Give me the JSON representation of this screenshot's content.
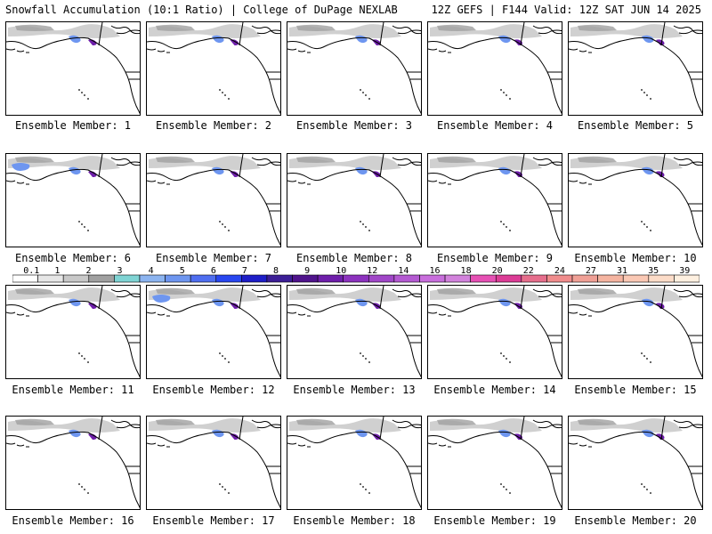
{
  "header": {
    "title": "Snowfall Accumulation (10:1 Ratio) | College of DuPage NEXLAB",
    "run_info": "12Z GEFS | F144 Valid: 12Z SAT JUN 14 2025"
  },
  "members": [
    {
      "label": "Ensemble Member: 1"
    },
    {
      "label": "Ensemble Member: 2"
    },
    {
      "label": "Ensemble Member: 3"
    },
    {
      "label": "Ensemble Member: 4"
    },
    {
      "label": "Ensemble Member: 5"
    },
    {
      "label": "Ensemble Member: 6"
    },
    {
      "label": "Ensemble Member: 7"
    },
    {
      "label": "Ensemble Member: 8"
    },
    {
      "label": "Ensemble Member: 9"
    },
    {
      "label": "Ensemble Member: 10"
    },
    {
      "label": "Ensemble Member: 11"
    },
    {
      "label": "Ensemble Member: 12"
    },
    {
      "label": "Ensemble Member: 13"
    },
    {
      "label": "Ensemble Member: 14"
    },
    {
      "label": "Ensemble Member: 15"
    },
    {
      "label": "Ensemble Member: 16"
    },
    {
      "label": "Ensemble Member: 17"
    },
    {
      "label": "Ensemble Member: 18"
    },
    {
      "label": "Ensemble Member: 19"
    },
    {
      "label": "Ensemble Member: 20"
    }
  ],
  "colorbar": {
    "labels": [
      "0.1",
      "1",
      "2",
      "3",
      "4",
      "5",
      "6",
      "7",
      "8",
      "9",
      "10",
      "12",
      "14",
      "16",
      "18",
      "20",
      "22",
      "24",
      "27",
      "31",
      "35",
      "39"
    ],
    "colors": [
      "#ffffff",
      "#e6e6e6",
      "#c8c8c8",
      "#a0a0a0",
      "#7fd4d4",
      "#8cb4f0",
      "#6e96f0",
      "#4f6ef0",
      "#2846f0",
      "#1e1ec8",
      "#3c1e96",
      "#50148c",
      "#6e1eaa",
      "#8c32be",
      "#a046c8",
      "#b45ad2",
      "#c86edc",
      "#d282dc",
      "#e650b4",
      "#dc3c96",
      "#e66e8c",
      "#f08c8c",
      "#f0a096",
      "#f5b4a0",
      "#fac8b4",
      "#fcdcc8",
      "#fef0e0"
    ]
  },
  "colors": {
    "coast": "#000000",
    "snow_light": "#c8c8c8",
    "snow_mid": "#a0a0a0",
    "snow_blue": "#6e96f0",
    "snow_purple": "#6e1eaa"
  }
}
